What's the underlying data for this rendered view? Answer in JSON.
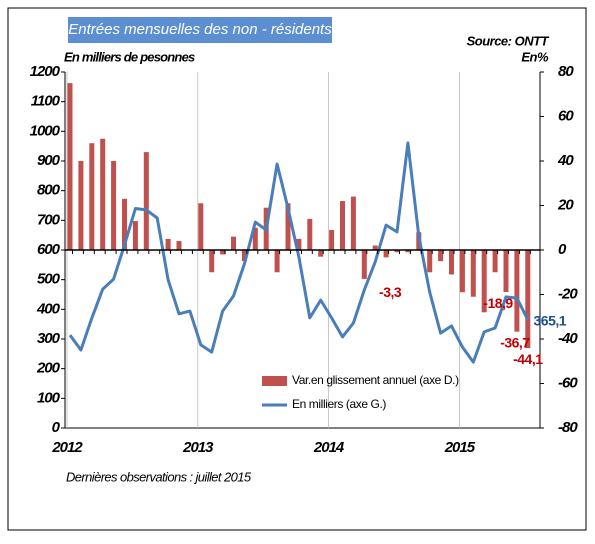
{
  "chart_data": {
    "type": "bar-line",
    "title": "Entrées mensuelles des non - résidents",
    "source": "Source: ONTT",
    "y_label": "En milliers de pesonnes",
    "y2_label": "En%",
    "footnote": "Dernières observations : juillet 2015",
    "categories": [
      "2012",
      null,
      null,
      null,
      null,
      null,
      null,
      null,
      null,
      null,
      null,
      null,
      "2013",
      null,
      null,
      null,
      null,
      null,
      null,
      null,
      null,
      null,
      null,
      null,
      "2014",
      null,
      null,
      null,
      null,
      null,
      null,
      null,
      null,
      null,
      null,
      null,
      "2015",
      null,
      null,
      null,
      null,
      null,
      null
    ],
    "series": [
      {
        "name": "Var.en glissement annuel (axe D.)",
        "type": "bar",
        "axis": "y2",
        "color": "#c0504d",
        "values": [
          75,
          40,
          48,
          50,
          40,
          23,
          13,
          44,
          0,
          5,
          4,
          0,
          21,
          -10,
          -2,
          6,
          -5,
          10,
          19,
          -10,
          21,
          5,
          14,
          -3,
          9,
          22,
          24,
          -13,
          2,
          -3.3,
          -1,
          -1,
          8,
          -10,
          -5,
          -11,
          -19,
          -21,
          -28,
          -10,
          -18.9,
          -36.7,
          -44.1
        ],
        "value_labels": [
          null,
          null,
          null,
          null,
          null,
          null,
          null,
          null,
          null,
          null,
          null,
          null,
          null,
          null,
          null,
          null,
          null,
          null,
          null,
          null,
          null,
          null,
          null,
          null,
          null,
          null,
          null,
          null,
          null,
          "-3,3",
          null,
          null,
          null,
          null,
          null,
          null,
          null,
          null,
          null,
          null,
          "-18,9",
          "-36,7",
          "-44,1"
        ]
      },
      {
        "name": "En milliers (axe G.)",
        "type": "line",
        "axis": "y",
        "color": "#4a7ebb",
        "values": [
          313,
          263,
          370,
          468,
          502,
          617,
          740,
          735,
          708,
          500,
          385,
          394,
          280,
          256,
          394,
          445,
          553,
          694,
          667,
          890,
          741,
          576,
          371,
          431,
          371,
          307,
          354,
          465,
          560,
          684,
          661,
          961,
          647,
          458,
          320,
          344,
          273,
          222,
          324,
          337,
          442,
          438,
          365.1
        ],
        "value_labels": [
          null,
          null,
          null,
          null,
          null,
          null,
          null,
          null,
          null,
          null,
          null,
          null,
          null,
          null,
          null,
          null,
          null,
          null,
          null,
          null,
          null,
          null,
          null,
          null,
          null,
          null,
          null,
          null,
          null,
          null,
          null,
          null,
          null,
          null,
          null,
          null,
          null,
          null,
          null,
          null,
          null,
          null,
          "365,1"
        ]
      }
    ],
    "ylim": [
      0,
      1200
    ],
    "yticks": [
      0,
      100,
      200,
      300,
      400,
      500,
      600,
      700,
      800,
      900,
      1000,
      1100,
      1200
    ],
    "y2lim": [
      -80,
      80
    ],
    "y2ticks": [
      -80,
      -60,
      -40,
      -20,
      0,
      20,
      40,
      60,
      80
    ]
  }
}
